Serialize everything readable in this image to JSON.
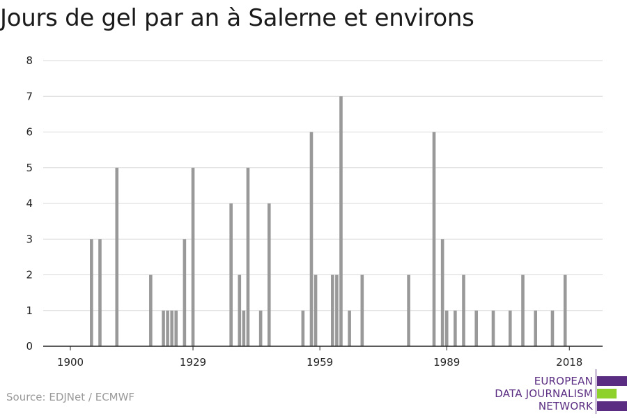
{
  "title": "Jours de gel par an à Salerne et environs",
  "source": "Source: EDJNet / ECMWF",
  "logo": {
    "line1": "EUROPEAN",
    "line2": "DATA JOURNALISM",
    "line3": "NETWORK",
    "colors": {
      "purple": "#5b2d82",
      "green": "#8fd12c"
    }
  },
  "chart_data": {
    "type": "bar",
    "title": "Jours de gel par an à Salerne et environs",
    "xlabel": "",
    "ylabel": "",
    "xlim": [
      1894,
      2025
    ],
    "ylim": [
      0,
      8
    ],
    "x_ticks": [
      1900,
      1929,
      1959,
      1989,
      2018
    ],
    "y_ticks": [
      0,
      1,
      2,
      3,
      4,
      5,
      6,
      7,
      8
    ],
    "grid": true,
    "bar_color": "#999999",
    "series": [
      {
        "x": [
          1905,
          1907,
          1911,
          1919,
          1922,
          1923,
          1924,
          1925,
          1927,
          1929,
          1938,
          1940,
          1941,
          1942,
          1945,
          1947,
          1955,
          1957,
          1958,
          1962,
          1963,
          1964,
          1966,
          1969,
          1980,
          1986,
          1988,
          1989,
          1991,
          1993,
          1996,
          2000,
          2004,
          2007,
          2010,
          2014,
          2017
        ],
        "values": [
          3,
          3,
          5,
          2,
          1,
          1,
          1,
          1,
          3,
          5,
          4,
          2,
          1,
          5,
          1,
          4,
          1,
          6,
          2,
          2,
          2,
          7,
          1,
          2,
          2,
          6,
          3,
          1,
          1,
          2,
          1,
          1,
          1,
          2,
          1,
          1,
          2
        ]
      }
    ]
  }
}
